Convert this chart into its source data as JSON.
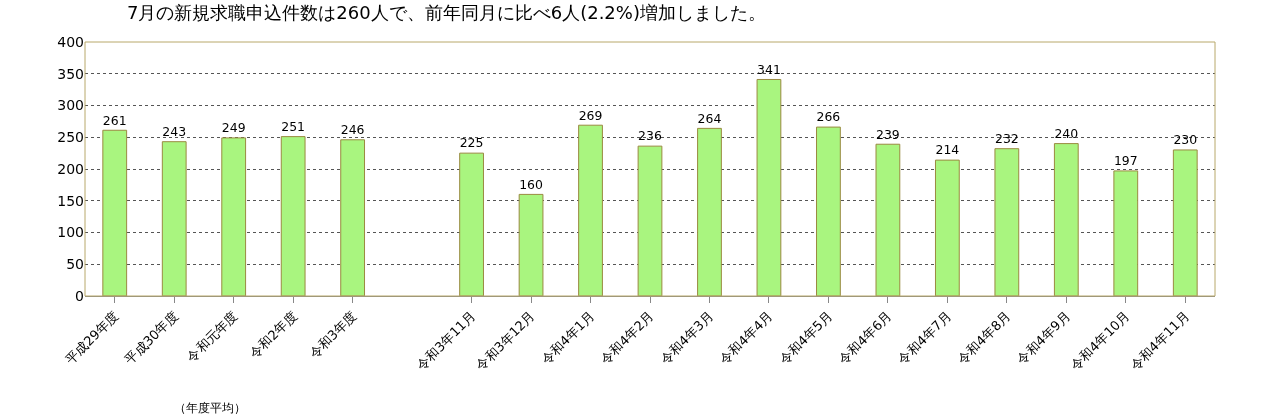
{
  "chart_data": {
    "type": "bar",
    "title": "7月の新規求職申込件数は260人で、前年同月に比べ6人(2.2%)増加しました。",
    "categories": [
      "平成29年度",
      "平成30年度",
      "令和元年度",
      "令和2年度",
      "令和3年度",
      null,
      "令和3年11月",
      "令和3年12月",
      "令和4年1月",
      "令和4年2月",
      "令和4年3月",
      "令和4年4月",
      "令和4年5月",
      "令和4年6月",
      "令和4年7月",
      "令和4年8月",
      "令和4年9月",
      "令和4年10月",
      "令和4年11月"
    ],
    "values": [
      261,
      243,
      249,
      251,
      246,
      null,
      225,
      160,
      269,
      236,
      264,
      341,
      266,
      239,
      214,
      232,
      240,
      197,
      230
    ],
    "color": "#a9f57f",
    "ylim": [
      0,
      400
    ],
    "yticks": [
      0,
      50,
      100,
      150,
      200,
      250,
      300,
      350,
      400
    ],
    "grid": "y",
    "data_labels": true,
    "annotations": [
      "（年度平均）"
    ]
  }
}
